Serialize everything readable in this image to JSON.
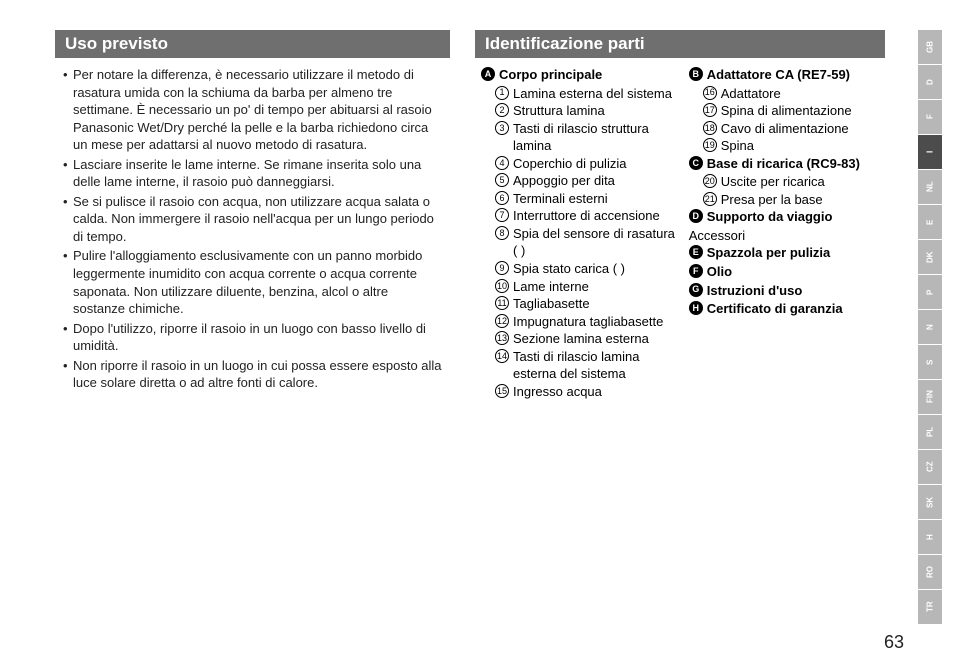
{
  "leftHeader": "Uso previsto",
  "rightHeader": "Identificazione parti",
  "bullets": [
    "Per notare la differenza, è necessario utilizzare il metodo di rasatura umida con la schiuma da barba per almeno tre settimane. È necessario un po' di tempo per abituarsi al rasoio Panasonic Wet/Dry perché la pelle e la barba richiedono circa un mese per adattarsi al nuovo metodo di rasatura.",
    "Lasciare inserite le lame interne. Se rimane inserita solo una delle lame interne, il rasoio può danneggiarsi.",
    "Se si pulisce il rasoio con acqua, non utilizzare acqua salata o calda. Non immergere il rasoio nell'acqua per un lungo periodo di tempo.",
    "Pulire l'alloggiamento esclusivamente con un panno morbido leggermente inumidito con acqua corrente o acqua corrente saponata. Non utilizzare diluente, benzina, alcol o altre sostanze chimiche.",
    "Dopo l'utilizzo, riporre il rasoio in un luogo con basso livello di umidità.",
    "Non riporre il rasoio in un luogo in cui possa essere esposto alla luce solare diretta o ad altre fonti di calore."
  ],
  "groupA": {
    "letter": "A",
    "title": "Corpo principale",
    "items": [
      {
        "n": "1",
        "t": "Lamina esterna del sistema"
      },
      {
        "n": "2",
        "t": "Struttura lamina"
      },
      {
        "n": "3",
        "t": "Tasti di rilascio struttura lamina"
      },
      {
        "n": "4",
        "t": "Coperchio di pulizia"
      },
      {
        "n": "5",
        "t": "Appoggio per dita"
      },
      {
        "n": "6",
        "t": "Terminali esterni"
      },
      {
        "n": "7",
        "t": "Interruttore di accensione"
      },
      {
        "n": "8",
        "t": "Spia del sensore di rasatura (  )"
      },
      {
        "n": "9",
        "t": "Spia stato carica (  )"
      },
      {
        "n": "10",
        "t": "Lame interne"
      },
      {
        "n": "11",
        "t": "Tagliabasette"
      },
      {
        "n": "12",
        "t": "Impugnatura tagliabasette"
      },
      {
        "n": "13",
        "t": "Sezione lamina esterna"
      },
      {
        "n": "14",
        "t": "Tasti di rilascio lamina esterna del sistema"
      },
      {
        "n": "15",
        "t": "Ingresso acqua"
      }
    ]
  },
  "groupB": {
    "letter": "B",
    "title": "Adattatore CA (RE7-59)",
    "items": [
      {
        "n": "16",
        "t": "Adattatore"
      },
      {
        "n": "17",
        "t": "Spina di alimentazione"
      },
      {
        "n": "18",
        "t": "Cavo di alimentazione"
      },
      {
        "n": "19",
        "t": "Spina"
      }
    ]
  },
  "groupC": {
    "letter": "C",
    "title": "Base di ricarica (RC9-83)",
    "items": [
      {
        "n": "20",
        "t": "Uscite per ricarica"
      },
      {
        "n": "21",
        "t": "Presa per la base"
      }
    ]
  },
  "groupD": {
    "letter": "D",
    "title": "Supporto da viaggio"
  },
  "accessoriLabel": "Accessori",
  "groupE": {
    "letter": "E",
    "title": "Spazzola per pulizia"
  },
  "groupF": {
    "letter": "F",
    "title": "Olio"
  },
  "groupG": {
    "letter": "G",
    "title": "Istruzioni d'uso"
  },
  "groupH": {
    "letter": "H",
    "title": "Certificato di garanzia"
  },
  "langTabs": [
    "GB",
    "D",
    "F",
    "I",
    "NL",
    "E",
    "DK",
    "P",
    "N",
    "S",
    "FIN",
    "PL",
    "CZ",
    "SK",
    "H",
    "RO",
    "TR"
  ],
  "activeLang": "I",
  "pageNumber": "63"
}
